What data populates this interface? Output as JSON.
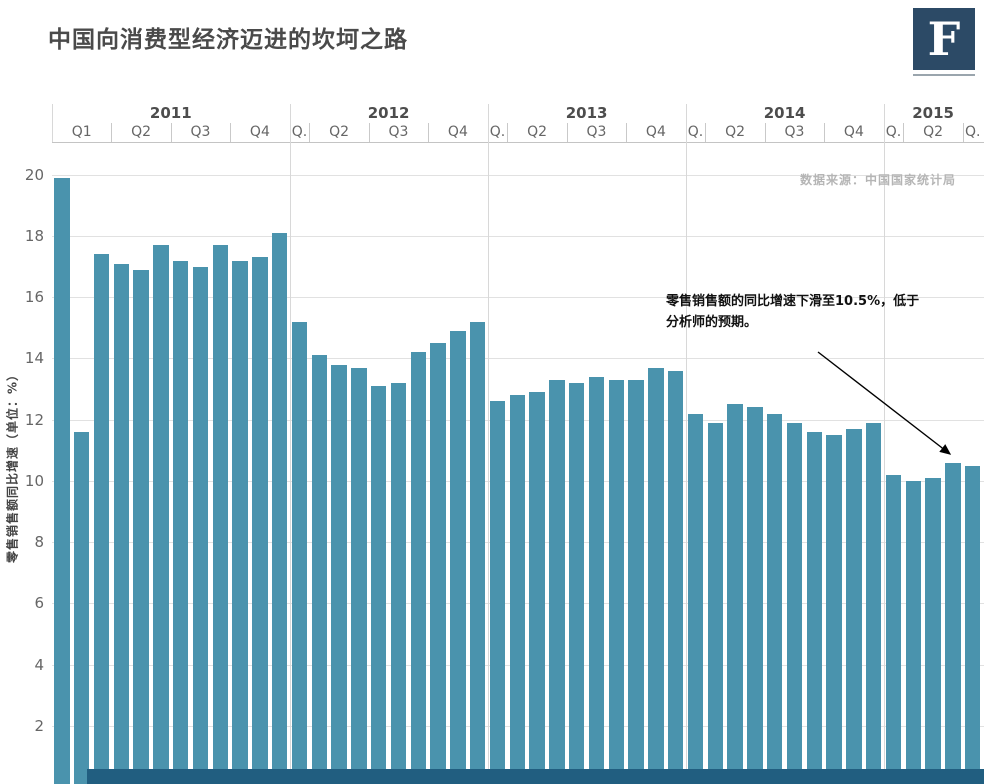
{
  "header": {
    "title": "中国向消费型经济迈进的坎坷之路",
    "logo_letter": "F"
  },
  "chart": {
    "source_note": "数据来源：中国国家统计局",
    "y_axis_title": "零售销售额同比增速（单位：%）",
    "annotation": {
      "line1": "零售销售额的同比增速下滑至10.5%，低于",
      "line2": "分析师的预期。"
    }
  },
  "chart_data": {
    "type": "bar",
    "title": "中国向消费型经济迈进的坎坷之路",
    "ylabel": "零售销售额同比增速（单位：%）",
    "ylim": [
      0,
      21
    ],
    "grid": true,
    "bar_color": "#4a93ad",
    "y_ticks": [
      2,
      4,
      6,
      8,
      10,
      12,
      14,
      16,
      18,
      20
    ],
    "annotation_value": 10.5,
    "years": [
      {
        "label": "2011",
        "quarters": [
          {
            "label": "Q1",
            "size": 3
          },
          {
            "label": "Q2",
            "size": 3
          },
          {
            "label": "Q3",
            "size": 3
          },
          {
            "label": "Q4",
            "size": 3
          }
        ],
        "values": [
          19.9,
          11.6,
          17.4,
          17.1,
          16.9,
          17.7,
          17.2,
          17.0,
          17.7,
          17.2,
          17.3,
          18.1
        ]
      },
      {
        "label": "2012",
        "quarters": [
          {
            "label": "Q.",
            "size": 1
          },
          {
            "label": "Q2",
            "size": 3
          },
          {
            "label": "Q3",
            "size": 3
          },
          {
            "label": "Q4",
            "size": 3
          }
        ],
        "values": [
          15.2,
          14.1,
          13.8,
          13.7,
          13.1,
          13.2,
          14.2,
          14.5,
          14.9,
          15.2
        ]
      },
      {
        "label": "2013",
        "quarters": [
          {
            "label": "Q.",
            "size": 1
          },
          {
            "label": "Q2",
            "size": 3
          },
          {
            "label": "Q3",
            "size": 3
          },
          {
            "label": "Q4",
            "size": 3
          }
        ],
        "values": [
          12.6,
          12.8,
          12.9,
          13.3,
          13.2,
          13.4,
          13.3,
          13.3,
          13.7,
          13.6
        ]
      },
      {
        "label": "2014",
        "quarters": [
          {
            "label": "Q.",
            "size": 1
          },
          {
            "label": "Q2",
            "size": 3
          },
          {
            "label": "Q3",
            "size": 3
          },
          {
            "label": "Q4",
            "size": 3
          }
        ],
        "values": [
          12.2,
          11.9,
          12.5,
          12.4,
          12.2,
          11.9,
          11.6,
          11.5,
          11.7,
          11.9
        ]
      },
      {
        "label": "2015",
        "quarters": [
          {
            "label": "Q.",
            "size": 1
          },
          {
            "label": "Q2",
            "size": 3
          },
          {
            "label": "Q.",
            "size": 1
          }
        ],
        "values": [
          10.2,
          10.0,
          10.1,
          10.6,
          10.5
        ]
      }
    ]
  }
}
